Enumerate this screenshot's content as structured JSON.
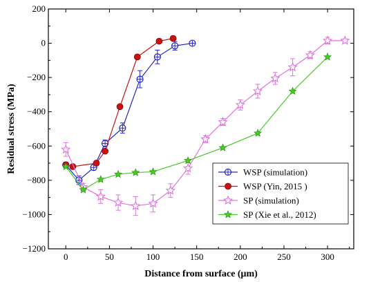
{
  "chart_data": {
    "type": "line",
    "xlabel": "Distance from surface (μm)",
    "ylabel": "Residual stress (MPa)",
    "xlim": [
      -20,
      330
    ],
    "ylim": [
      -1200,
      200
    ],
    "xticks": [
      0,
      50,
      100,
      150,
      200,
      250,
      300
    ],
    "yticks": [
      200,
      0,
      -200,
      -400,
      -600,
      -800,
      -1000,
      -1200
    ],
    "xtick_labels": [
      "0",
      "50",
      "100",
      "150",
      "200",
      "250",
      "300"
    ],
    "ytick_labels": [
      "200",
      "0",
      "−200",
      "−400",
      "−600",
      "−800",
      "−1000",
      "−1200"
    ],
    "legend_position": "lower-right",
    "series": [
      {
        "name": "WSP (simulation)",
        "color": "#2323c8",
        "marker": "circle-plus",
        "x": [
          0,
          15,
          32,
          45,
          65,
          85,
          105,
          125,
          145
        ],
        "y": [
          -710,
          -800,
          -725,
          -585,
          -495,
          -210,
          -80,
          -15,
          0
        ],
        "err": [
          15,
          25,
          15,
          20,
          30,
          50,
          40,
          25,
          12
        ]
      },
      {
        "name": "WSP (Yin, 2015 )",
        "color": "#cc1010",
        "marker": "filled-circle",
        "x": [
          0,
          8,
          35,
          45,
          62,
          82,
          107,
          123
        ],
        "y": [
          -710,
          -720,
          -700,
          -630,
          -370,
          -80,
          12,
          28
        ],
        "err": []
      },
      {
        "name": "SP (simulation)",
        "color": "#e070e0",
        "marker": "open-star",
        "x": [
          0,
          20,
          40,
          60,
          80,
          100,
          120,
          140,
          160,
          180,
          200,
          220,
          240,
          260,
          280,
          300,
          320
        ],
        "y": [
          -620,
          -840,
          -895,
          -930,
          -950,
          -935,
          -860,
          -730,
          -560,
          -460,
          -360,
          -280,
          -205,
          -140,
          -70,
          15,
          15
        ],
        "err": [
          40,
          20,
          40,
          45,
          55,
          50,
          40,
          35,
          20,
          20,
          30,
          40,
          35,
          50,
          20,
          20,
          10
        ]
      },
      {
        "name": "SP (Xie et al., 2012)",
        "color": "#44cc22",
        "marker": "filled-star",
        "x": [
          0,
          20,
          40,
          60,
          80,
          100,
          140,
          180,
          220,
          260,
          300
        ],
        "y": [
          -720,
          -855,
          -795,
          -765,
          -755,
          -750,
          -685,
          -610,
          -525,
          -280,
          -80
        ],
        "err": []
      }
    ]
  }
}
